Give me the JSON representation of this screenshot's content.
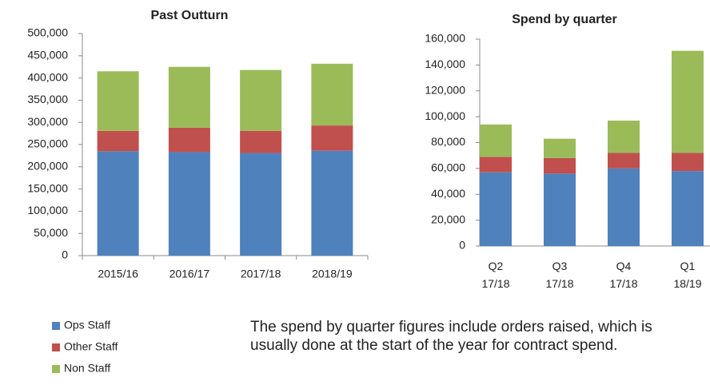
{
  "chart_data": [
    {
      "type": "stacked_bar",
      "title": "Past Outturn",
      "categories": [
        "2015/16",
        "2016/17",
        "2017/18",
        "2018/19"
      ],
      "series": [
        {
          "name": "Ops Staff",
          "color": "#4f81bd",
          "values": [
            235000,
            233000,
            231000,
            236000
          ]
        },
        {
          "name": "Other Staff",
          "color": "#c0504d",
          "values": [
            46000,
            55000,
            50000,
            57000
          ]
        },
        {
          "name": "Non Staff",
          "color": "#9bbb59",
          "values": [
            134000,
            137000,
            137000,
            139000
          ]
        }
      ],
      "ylim": [
        0,
        500000
      ],
      "yticks": [
        0,
        {
          "value": 50000,
          "label": "50,000"
        },
        {
          "value": 100000,
          "label": "100,000"
        },
        {
          "value": 150000,
          "label": "150,000"
        },
        {
          "value": 200000,
          "label": "200,000"
        },
        {
          "value": 250000,
          "label": "250,000"
        },
        {
          "value": 300000,
          "label": "300,000"
        },
        {
          "value": 350000,
          "label": "350,000"
        },
        {
          "value": 400000,
          "label": "400,000"
        },
        {
          "value": 450000,
          "label": "450,000"
        },
        {
          "value": 500000,
          "label": "500,000"
        }
      ],
      "grid": false
    },
    {
      "type": "stacked_bar",
      "title": "Spend by quarter",
      "categories": [
        "Q2 17/18",
        "Q3 17/18",
        "Q4 17/18",
        "Q1 18/19"
      ],
      "series": [
        {
          "color": "#4f81bd",
          "values": [
            57000,
            56000,
            60000,
            58000
          ]
        },
        {
          "color": "#c0504d",
          "values": [
            12000,
            12000,
            12000,
            14000
          ]
        },
        {
          "color": "#9bbb59",
          "values": [
            25000,
            15000,
            25000,
            79000
          ]
        }
      ],
      "ylim": [
        0,
        160000
      ],
      "yticks": [
        0,
        {
          "value": 20000,
          "label": "20,000"
        },
        {
          "value": 40000,
          "label": "40,000"
        },
        {
          "value": 60000,
          "label": "60,000"
        },
        {
          "value": 80000,
          "label": "80,000"
        },
        {
          "value": 100000,
          "label": "100,000"
        },
        {
          "value": 120000,
          "label": "120,000"
        },
        {
          "value": 140000,
          "label": "140,000"
        },
        {
          "value": 160000,
          "label": "160,000"
        }
      ],
      "grid": false
    }
  ],
  "note": "The spend by quarter figures include orders raised, which is usually done at the start of the year for contract spend."
}
